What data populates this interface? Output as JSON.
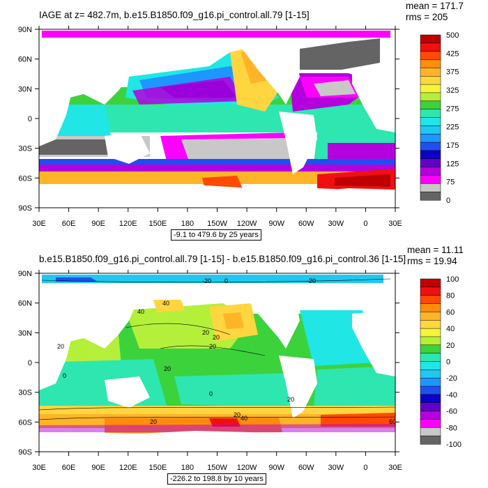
{
  "panel1": {
    "title": "IAGE at z= 482.7m, b.e15.B1850.f09_g16.pi_control.all.79 [1-15]",
    "mean": "mean = 171.7",
    "rms": "rms = 205",
    "range": "-9.1 to 479.6 by 25 years",
    "lat_labels": [
      "90N",
      "60N",
      "30N",
      "0",
      "30S",
      "60S",
      "90S"
    ],
    "lon_labels": [
      "30E",
      "60E",
      "90E",
      "120E",
      "150E",
      "180",
      "150W",
      "120W",
      "90W",
      "60W",
      "30W",
      "0",
      "30E"
    ],
    "colorbar_labels": [
      "500",
      "425",
      "375",
      "325",
      "275",
      "225",
      "175",
      "125",
      "75",
      "0"
    ],
    "colorbar_colors": [
      "#bf0000",
      "#f01010",
      "#ff4a00",
      "#ff8c0a",
      "#ffb428",
      "#ffd640",
      "#f5f53a",
      "#b4f03a",
      "#3cd23c",
      "#2ee6b0",
      "#20e6e6",
      "#1ec8f0",
      "#1e96ff",
      "#1e50f0",
      "#0a00c8",
      "#6400c8",
      "#b400dc",
      "#ff00ff",
      "#c8c8c8",
      "#646464"
    ]
  },
  "panel2": {
    "title": "b.e15.B1850.f09_g16.pi_control.all.79 [1-15] - b.e15.B1850.f09_g16.pi_control.36 [1-15]",
    "mean": "mean = 11.11",
    "rms": "rms = 19.94",
    "range": "-226.2 to 198.8 by 10 years",
    "lat_labels": [
      "90N",
      "60N",
      "30N",
      "0",
      "30S",
      "60S",
      "90S"
    ],
    "lon_labels": [
      "30E",
      "60E",
      "90E",
      "120E",
      "150E",
      "180",
      "150W",
      "120W",
      "90W",
      "60W",
      "30W",
      "0",
      "30E"
    ],
    "colorbar_labels": [
      "100",
      "80",
      "60",
      "40",
      "20",
      "0",
      "-20",
      "-40",
      "-60",
      "-80",
      "-100"
    ],
    "colorbar_colors": [
      "#bf0000",
      "#f01010",
      "#ff4a00",
      "#ff8c0a",
      "#ffb428",
      "#ffd640",
      "#f5f53a",
      "#b4f03a",
      "#3cd23c",
      "#2ee6b0",
      "#20e6e6",
      "#1ec8f0",
      "#1e96ff",
      "#1e50f0",
      "#0a00c8",
      "#6400c8",
      "#b400dc",
      "#ff00ff",
      "#c8c8c8",
      "#646464"
    ],
    "contour_labels": [
      "-20",
      "0",
      "-20",
      "40",
      "40",
      "20",
      "20",
      "20",
      "20",
      "20",
      "0",
      "0",
      "20",
      "40",
      "20",
      "60",
      "20"
    ]
  },
  "colors": {
    "land": "#ffffff",
    "frame": "#000000"
  }
}
